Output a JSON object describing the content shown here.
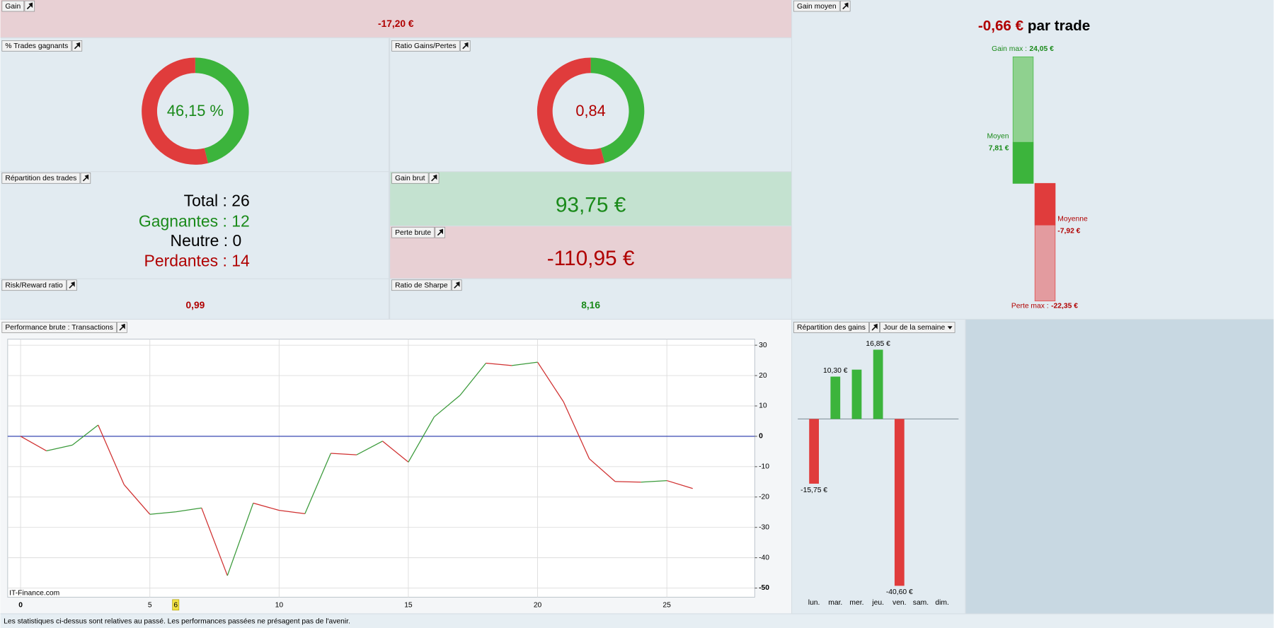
{
  "panels": {
    "gain": {
      "title": "Gain",
      "value": "-17,20 €"
    },
    "repartition_trades": {
      "title": "Répartition des trades",
      "lines": [
        {
          "label": "Total :",
          "value": 26
        },
        {
          "label": "Gagnantes :",
          "value": 12
        },
        {
          "label": "Neutre :",
          "value": 0
        },
        {
          "label": "Perdantes :",
          "value": 14
        }
      ]
    },
    "gain_brut": {
      "title": "Gain brut",
      "value": "93,75 €"
    },
    "perte_brute": {
      "title": "Perte brute",
      "value": "-110,95 €"
    },
    "risk_reward": {
      "title": "Risk/Reward ratio",
      "value": "0,99"
    },
    "sharpe": {
      "title": "Ratio de Sharpe",
      "value": "8,16"
    },
    "dropdown": "Jour de la semaine",
    "footer": "Les statistiques ci-dessus sont relatives au passé. Les performances passées ne présagent pas de l'avenir."
  },
  "chart_data": [
    {
      "type": "pie",
      "title": "% Trades gagnants",
      "center_label": "46,15 %",
      "values": [
        46.15,
        53.85
      ],
      "colors": [
        "#3cb43c",
        "#e03c3c"
      ]
    },
    {
      "type": "pie",
      "title": "Ratio Gains/Pertes",
      "center_label": "0,84",
      "values": [
        93.75,
        110.95
      ],
      "colors": [
        "#3cb43c",
        "#e03c3c"
      ]
    },
    {
      "type": "line",
      "title": "Performance brute : Transactions",
      "watermark": "IT-Finance.com",
      "x": [
        0,
        1,
        2,
        3,
        4,
        5,
        6,
        7,
        8,
        9,
        10,
        11,
        12,
        13,
        14,
        15,
        16,
        17,
        18,
        19,
        20,
        21,
        22,
        23,
        24,
        25,
        26
      ],
      "values": [
        0,
        -4.8,
        -2.9,
        3.7,
        -15.9,
        -25.7,
        -24.9,
        -23.6,
        -45.9,
        -22,
        -24.4,
        -25.5,
        -5.6,
        -6.1,
        -1.6,
        -8.5,
        6.4,
        13.5,
        24.1,
        23.3,
        24.4,
        11.4,
        -7.4,
        -14.9,
        -15.1,
        -14.6,
        -17.2
      ],
      "colors": {
        "up": "#3a9a3a",
        "down": "#d03030",
        "zero": "#2233aa"
      },
      "xlim": [
        -0.5,
        28.4
      ],
      "ylim": [
        -53,
        32
      ],
      "xticks": [
        0,
        5,
        10,
        15,
        20,
        25
      ],
      "yticks": [
        30,
        20,
        10,
        0,
        -10,
        -20,
        -30,
        -40,
        -50
      ],
      "cursor_x": 6,
      "grid": true
    },
    {
      "type": "bar",
      "title": "Répartition des gains",
      "categories": [
        "lun.",
        "mar.",
        "mer.",
        "jeu.",
        "ven.",
        "sam.",
        "dim."
      ],
      "values": [
        -15.75,
        10.3,
        12,
        16.85,
        -40.6,
        null,
        null
      ],
      "value_labels": [
        "-15,75 €",
        "10,30 €",
        null,
        "16,85 €",
        "-40,60 €",
        null,
        null
      ],
      "colors": {
        "up": "#3cb43c",
        "down": "#e03c3c"
      }
    },
    {
      "type": "gauge",
      "title": "Gain moyen",
      "headline": "-0,66 €",
      "headline_suffix": "par trade",
      "categories": [
        "Gain max :",
        "Moyen",
        "Moyenne",
        "Perte max :"
      ],
      "values": [
        24.05,
        7.81,
        -7.92,
        -22.35
      ],
      "value_labels": [
        "24,05 €",
        "7,81 €",
        "-7,92 €",
        "-22,35 €"
      ],
      "colors": [
        "#8fd18f",
        "#3cb43c",
        "#e03c3c",
        "#e39b9f"
      ]
    }
  ]
}
